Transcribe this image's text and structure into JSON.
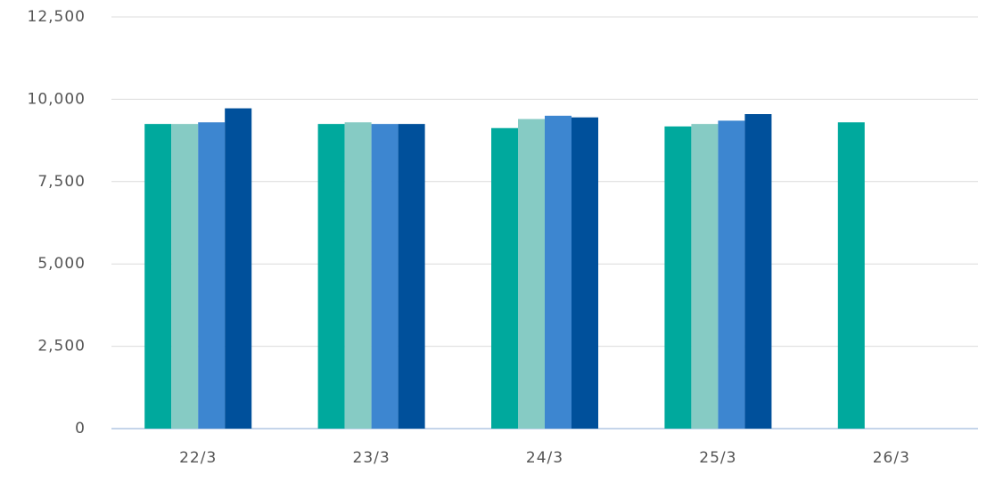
{
  "chart_data": {
    "type": "bar",
    "categories": [
      "22/3",
      "23/3",
      "24/3",
      "25/3",
      "26/3"
    ],
    "series": [
      {
        "color": "#00a99d",
        "values": [
          9250,
          9250,
          9125,
          9175,
          9300
        ]
      },
      {
        "color": "#86cbc4",
        "values": [
          9250,
          9300,
          9400,
          9250,
          null
        ]
      },
      {
        "color": "#3d86d0",
        "values": [
          9300,
          9250,
          9500,
          9350,
          null
        ]
      },
      {
        "color": "#00509b",
        "values": [
          9725,
          9250,
          9450,
          9550,
          null
        ]
      }
    ],
    "ylim": [
      0,
      12500
    ],
    "yticks": [
      0,
      {
        "value": 2500,
        "label": "2,500"
      },
      {
        "value": 5000,
        "label": "5,000"
      },
      {
        "value": 7500,
        "label": "7,500"
      },
      {
        "value": 10000,
        "label": "10,000"
      },
      {
        "value": 12500,
        "label": "12,500"
      }
    ],
    "grid": true
  }
}
